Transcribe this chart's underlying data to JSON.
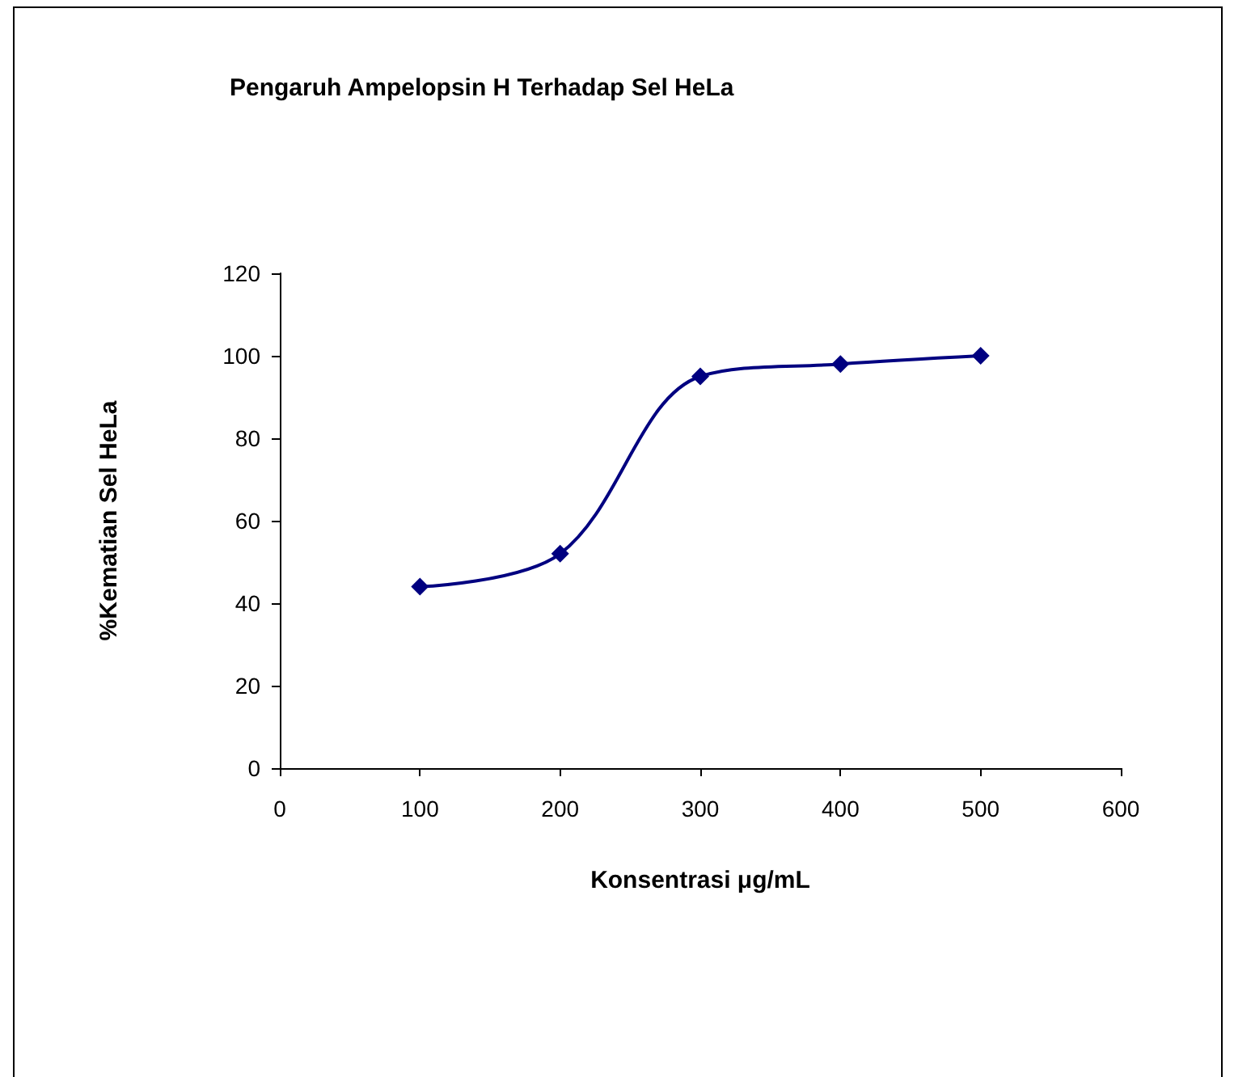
{
  "chart_data": {
    "type": "line",
    "title": "Pengaruh Ampelopsin H Terhadap Sel HeLa",
    "xlabel": "Konsentrasi μg/mL",
    "ylabel": "%Kematian Sel HeLa",
    "x": [
      100,
      200,
      300,
      400,
      500
    ],
    "series": [
      {
        "color": "#000080",
        "values": [
          44,
          52,
          95,
          98,
          100
        ]
      }
    ],
    "xlim": [
      0,
      600
    ],
    "xticks": [
      0,
      100,
      200,
      300,
      400,
      500,
      600
    ],
    "ylim": [
      0,
      120
    ],
    "yticks": [
      0,
      20,
      40,
      60,
      80,
      100,
      120
    ],
    "grid": false,
    "marker": "diamond",
    "line_style": "solid"
  }
}
